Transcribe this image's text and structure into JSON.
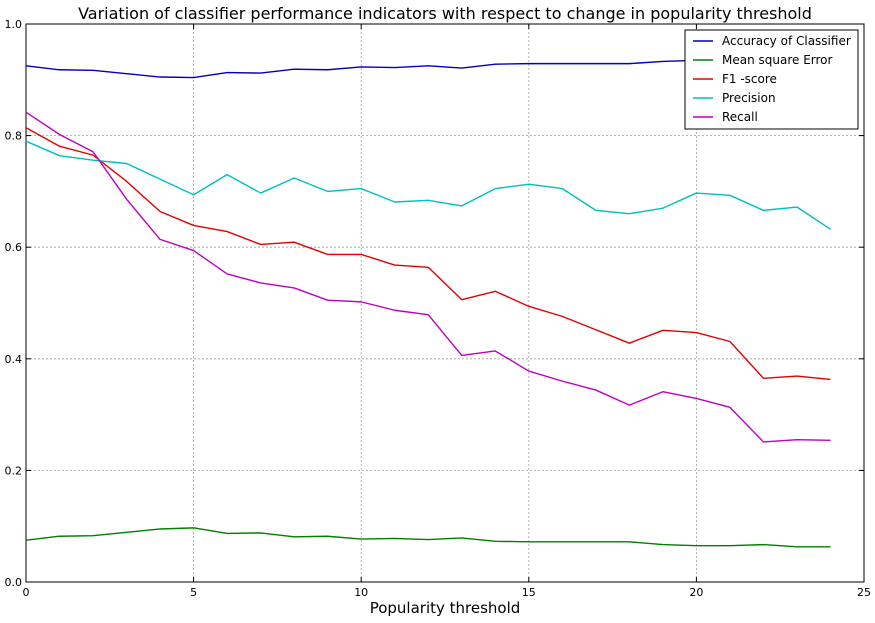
{
  "chart_data": {
    "type": "line",
    "title": "Variation of classifier performance indicators with respect to change in popularity threshold",
    "xlabel": "Popularity threshold",
    "ylabel": "",
    "xlim": [
      0,
      25
    ],
    "ylim": [
      0.0,
      1.0
    ],
    "xticks": [
      0,
      5,
      10,
      15,
      20,
      25
    ],
    "yticks": [
      0.0,
      0.2,
      0.4,
      0.6,
      0.8,
      1.0
    ],
    "xtick_labels": [
      "0",
      "5",
      "10",
      "15",
      "20",
      "25"
    ],
    "ytick_labels": [
      "0.0",
      "0.2",
      "0.4",
      "0.6",
      "0.8",
      "1.0"
    ],
    "grid": true,
    "legend_position": "top-right",
    "x": [
      0,
      1,
      2,
      3,
      4,
      5,
      6,
      7,
      8,
      9,
      10,
      11,
      12,
      13,
      14,
      15,
      16,
      17,
      18,
      19,
      20,
      21,
      22,
      23,
      24
    ],
    "series": [
      {
        "name": "Accuracy of Classifier",
        "color": "#0000bf",
        "values": [
          0.925,
          0.918,
          0.917,
          0.911,
          0.905,
          0.904,
          0.913,
          0.912,
          0.919,
          0.918,
          0.923,
          0.922,
          0.925,
          0.921,
          0.928,
          0.929,
          0.929,
          0.929,
          0.929,
          0.933,
          0.935,
          0.936,
          0.937,
          0.938,
          0.938
        ]
      },
      {
        "name": "Mean square Error",
        "color": "#007f00",
        "values": [
          0.075,
          0.082,
          0.083,
          0.089,
          0.095,
          0.097,
          0.087,
          0.088,
          0.081,
          0.082,
          0.077,
          0.078,
          0.076,
          0.079,
          0.073,
          0.072,
          0.072,
          0.072,
          0.072,
          0.067,
          0.065,
          0.065,
          0.067,
          0.063,
          0.063
        ]
      },
      {
        "name": "F1 -score",
        "color": "#e50000",
        "values": [
          0.814,
          0.781,
          0.765,
          0.718,
          0.664,
          0.639,
          0.628,
          0.605,
          0.609,
          0.587,
          0.587,
          0.568,
          0.564,
          0.506,
          0.521,
          0.494,
          0.476,
          0.452,
          0.428,
          0.451,
          0.447,
          0.431,
          0.365,
          0.369,
          0.363
        ]
      },
      {
        "name": "Precision",
        "color": "#00bfbf",
        "values": [
          0.79,
          0.764,
          0.756,
          0.75,
          0.722,
          0.694,
          0.73,
          0.697,
          0.724,
          0.7,
          0.705,
          0.681,
          0.684,
          0.674,
          0.705,
          0.713,
          0.705,
          0.666,
          0.66,
          0.67,
          0.697,
          0.693,
          0.666,
          0.672,
          0.632
        ]
      },
      {
        "name": "Recall",
        "color": "#bf00bf",
        "values": [
          0.842,
          0.802,
          0.771,
          0.686,
          0.614,
          0.594,
          0.552,
          0.536,
          0.527,
          0.505,
          0.502,
          0.487,
          0.479,
          0.406,
          0.414,
          0.378,
          0.36,
          0.344,
          0.317,
          0.341,
          0.329,
          0.313,
          0.251,
          0.255,
          0.254
        ]
      }
    ]
  }
}
